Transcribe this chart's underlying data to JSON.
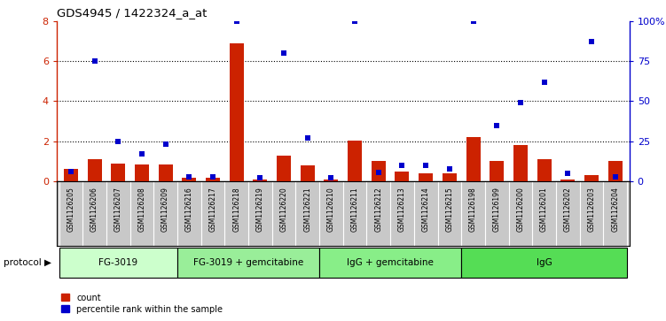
{
  "title": "GDS4945 / 1422324_a_at",
  "samples": [
    "GSM1126205",
    "GSM1126206",
    "GSM1126207",
    "GSM1126208",
    "GSM1126209",
    "GSM1126216",
    "GSM1126217",
    "GSM1126218",
    "GSM1126219",
    "GSM1126220",
    "GSM1126221",
    "GSM1126210",
    "GSM1126211",
    "GSM1126212",
    "GSM1126213",
    "GSM1126214",
    "GSM1126215",
    "GSM1126198",
    "GSM1126199",
    "GSM1126200",
    "GSM1126201",
    "GSM1126202",
    "GSM1126203",
    "GSM1126204"
  ],
  "count": [
    0.6,
    1.1,
    0.9,
    0.85,
    0.85,
    0.18,
    0.18,
    6.9,
    0.08,
    1.3,
    0.8,
    0.08,
    2.05,
    1.0,
    0.5,
    0.4,
    0.38,
    2.2,
    1.0,
    1.8,
    1.1,
    0.1,
    0.3,
    1.0
  ],
  "percentile": [
    6.0,
    75.0,
    25.0,
    17.0,
    23.0,
    3.0,
    3.0,
    100.0,
    2.5,
    80.0,
    27.0,
    2.0,
    100.0,
    5.5,
    10.0,
    10.0,
    8.0,
    100.0,
    35.0,
    49.0,
    62.0,
    5.0,
    87.0,
    3.0
  ],
  "groups": [
    {
      "label": "FG-3019",
      "start": 0,
      "end": 5
    },
    {
      "label": "FG-3019 + gemcitabine",
      "start": 5,
      "end": 11
    },
    {
      "label": "IgG + gemcitabine",
      "start": 11,
      "end": 17
    },
    {
      "label": "IgG",
      "start": 17,
      "end": 24
    }
  ],
  "bar_color": "#CC2200",
  "dot_color": "#0000CC",
  "group_colors": [
    "#CCFFCC",
    "#AAFFAA",
    "#88FF88",
    "#44DD44"
  ],
  "ylim_left": [
    0,
    8
  ],
  "ylim_right": [
    0,
    100
  ],
  "yticks_left": [
    0,
    2,
    4,
    6,
    8
  ],
  "yticks_right": [
    0,
    25,
    50,
    75,
    100
  ],
  "ytick_labels_right": [
    "0",
    "25",
    "50",
    "75",
    "100%"
  ],
  "grid_lines": [
    2,
    4,
    6
  ],
  "tick_bg_color": "#C8C8C8",
  "protocol_label": "protocol"
}
